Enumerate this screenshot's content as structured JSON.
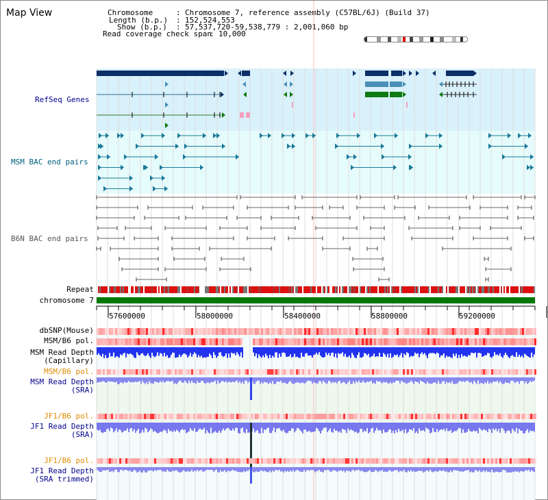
{
  "page_title": "Map View",
  "info": {
    "chromosome_label": "Chromosome",
    "chromosome_value": "Chromosome 7, reference assembly (C57BL/6J) (Build 37)",
    "length_label": "Length (b.p.)",
    "length_value": "152,524,553",
    "show_label": "Show (b.p.)",
    "show_value": "57,537,720-59,538,779 : 2,001,060 bp",
    "read_coverage_label": "Read coverage check span",
    "read_coverage_value": "10,000"
  },
  "tracks": {
    "refseq": "RefSeq Genes",
    "msm_bac": "MSM BAC end pairs",
    "b6n_bac": "B6N BAC end pairs",
    "repeat": "Repeat",
    "chromosome": "chromosome 7",
    "dbsnp": "dbSNP(Mouse)",
    "msm_b6_pol": "MSM/B6 pol.",
    "msm_depth_cap_1": "MSM Read Depth",
    "msm_depth_cap_2": "(Capillary)",
    "msm_b6_pol_2": "MSM/B6 pol.",
    "msm_depth_sra_1": "MSM Read Depth",
    "msm_depth_sra_2": "(SRA)",
    "jf1_b6_pol": "JF1/B6 pol.",
    "jf1_depth_sra_1": "JF1 Read Depth",
    "jf1_depth_sra_2": "(SRA)",
    "jf1_b6_pol_2": "JF1/B6 pol.",
    "jf1_depth_trim_1": "JF1 Read Depth",
    "jf1_depth_trim_2": "(SRA trimmed)"
  },
  "axis": {
    "ticks": [
      "57600000",
      "58000000",
      "58400000",
      "58800000",
      "59200000"
    ]
  },
  "colors": {
    "refseq_label": "#00008b",
    "msm_bac_label": "#006080",
    "b6n_bac_label": "#555555",
    "orange_label": "#e08a00",
    "blue_label": "#00008b",
    "chromosome_bar": "#007700",
    "refseq_bg": "#d9f1fb",
    "msm_bac_bg": "#e6fbfb",
    "gene_dark": "#0b2f66",
    "gene_mid": "#4a8fb8",
    "gene_green": "#0f7a0f"
  }
}
